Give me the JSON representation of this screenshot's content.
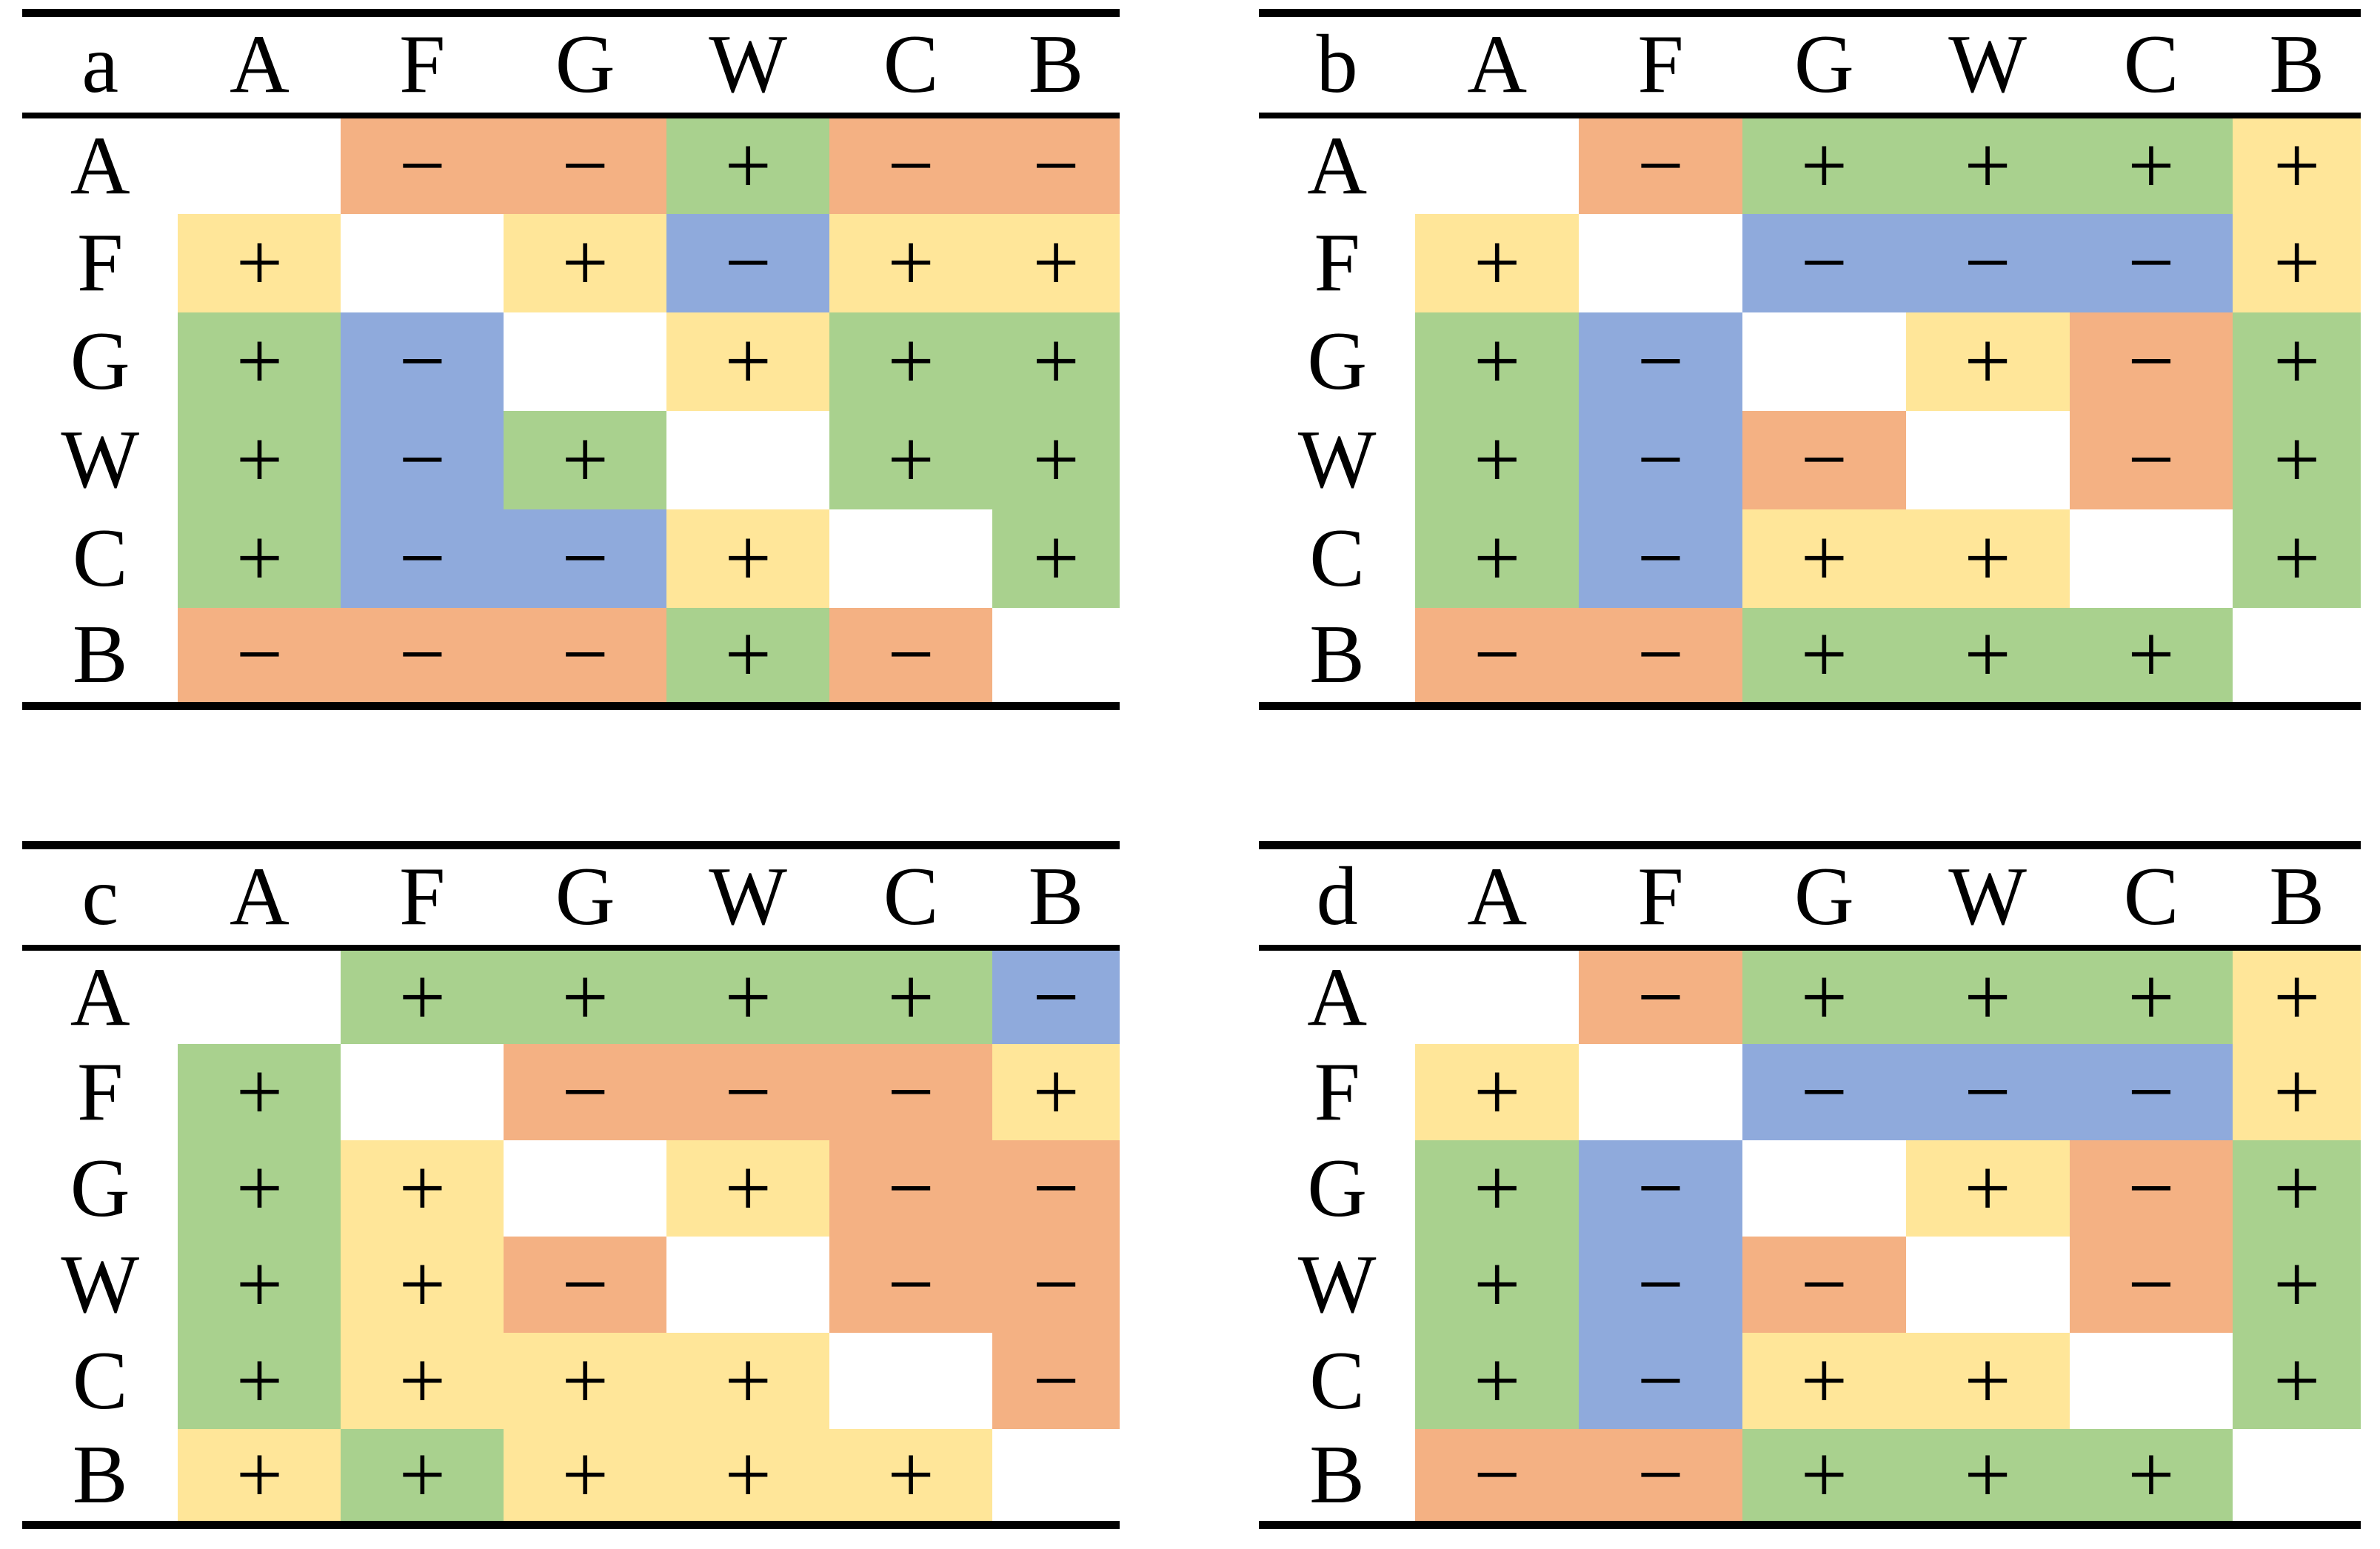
{
  "palette": {
    "green": "#a9d18e",
    "yellow": "#ffe699",
    "orange": "#f4b183",
    "blue": "#8faadc",
    "white": "#ffffff"
  },
  "chart_data": [
    {
      "type": "table",
      "panel_label": "a",
      "x_labels": [
        "A",
        "F",
        "G",
        "W",
        "C",
        "B"
      ],
      "y_labels": [
        "A",
        "F",
        "G",
        "W",
        "C",
        "B"
      ],
      "signs": [
        [
          "",
          "−",
          "−",
          "+",
          "−",
          "−"
        ],
        [
          "+",
          "",
          "+",
          "−",
          "+",
          "+"
        ],
        [
          "+",
          "−",
          "",
          "+",
          "+",
          "+"
        ],
        [
          "+",
          "−",
          "+",
          "",
          "+",
          "+"
        ],
        [
          "+",
          "−",
          "−",
          "+",
          "",
          "+"
        ],
        [
          "−",
          "−",
          "−",
          "+",
          "−",
          ""
        ]
      ],
      "cell_colors": [
        [
          "white",
          "orange",
          "orange",
          "green",
          "orange",
          "orange"
        ],
        [
          "yellow",
          "white",
          "yellow",
          "blue",
          "yellow",
          "yellow"
        ],
        [
          "green",
          "blue",
          "white",
          "yellow",
          "green",
          "green"
        ],
        [
          "green",
          "blue",
          "green",
          "white",
          "green",
          "green"
        ],
        [
          "green",
          "blue",
          "blue",
          "yellow",
          "white",
          "green"
        ],
        [
          "orange",
          "orange",
          "orange",
          "green",
          "orange",
          "white"
        ]
      ]
    },
    {
      "type": "table",
      "panel_label": "b",
      "x_labels": [
        "A",
        "F",
        "G",
        "W",
        "C",
        "B"
      ],
      "y_labels": [
        "A",
        "F",
        "G",
        "W",
        "C",
        "B"
      ],
      "signs": [
        [
          "",
          "−",
          "+",
          "+",
          "+",
          "+"
        ],
        [
          "+",
          "",
          "−",
          "−",
          "−",
          "+"
        ],
        [
          "+",
          "−",
          "",
          "+",
          "−",
          "+"
        ],
        [
          "+",
          "−",
          "−",
          "",
          "−",
          "+"
        ],
        [
          "+",
          "−",
          "+",
          "+",
          "",
          "+"
        ],
        [
          "−",
          "−",
          "+",
          "+",
          "+",
          ""
        ]
      ],
      "cell_colors": [
        [
          "white",
          "orange",
          "green",
          "green",
          "green",
          "yellow"
        ],
        [
          "yellow",
          "white",
          "blue",
          "blue",
          "blue",
          "yellow"
        ],
        [
          "green",
          "blue",
          "white",
          "yellow",
          "orange",
          "green"
        ],
        [
          "green",
          "blue",
          "orange",
          "white",
          "orange",
          "green"
        ],
        [
          "green",
          "blue",
          "yellow",
          "yellow",
          "white",
          "green"
        ],
        [
          "orange",
          "orange",
          "green",
          "green",
          "green",
          "white"
        ]
      ]
    },
    {
      "type": "table",
      "panel_label": "c",
      "x_labels": [
        "A",
        "F",
        "G",
        "W",
        "C",
        "B"
      ],
      "y_labels": [
        "A",
        "F",
        "G",
        "W",
        "C",
        "B"
      ],
      "signs": [
        [
          "",
          "+",
          "+",
          "+",
          "+",
          "−"
        ],
        [
          "+",
          "",
          "−",
          "−",
          "−",
          "+"
        ],
        [
          "+",
          "+",
          "",
          "+",
          "−",
          "−"
        ],
        [
          "+",
          "+",
          "−",
          "",
          "−",
          "−"
        ],
        [
          "+",
          "+",
          "+",
          "+",
          "",
          "−"
        ],
        [
          "+",
          "+",
          "+",
          "+",
          "+",
          ""
        ]
      ],
      "cell_colors": [
        [
          "white",
          "green",
          "green",
          "green",
          "green",
          "blue"
        ],
        [
          "green",
          "white",
          "orange",
          "orange",
          "orange",
          "yellow"
        ],
        [
          "green",
          "yellow",
          "white",
          "yellow",
          "orange",
          "orange"
        ],
        [
          "green",
          "yellow",
          "orange",
          "white",
          "orange",
          "orange"
        ],
        [
          "green",
          "yellow",
          "yellow",
          "yellow",
          "white",
          "orange"
        ],
        [
          "yellow",
          "green",
          "yellow",
          "yellow",
          "yellow",
          "white"
        ]
      ]
    },
    {
      "type": "table",
      "panel_label": "d",
      "x_labels": [
        "A",
        "F",
        "G",
        "W",
        "C",
        "B"
      ],
      "y_labels": [
        "A",
        "F",
        "G",
        "W",
        "C",
        "B"
      ],
      "signs": [
        [
          "",
          "−",
          "+",
          "+",
          "+",
          "+"
        ],
        [
          "+",
          "",
          "−",
          "−",
          "−",
          "+"
        ],
        [
          "+",
          "−",
          "",
          "+",
          "−",
          "+"
        ],
        [
          "+",
          "−",
          "−",
          "",
          "−",
          "+"
        ],
        [
          "+",
          "−",
          "+",
          "+",
          "",
          "+"
        ],
        [
          "−",
          "−",
          "+",
          "+",
          "+",
          ""
        ]
      ],
      "cell_colors": [
        [
          "white",
          "orange",
          "green",
          "green",
          "green",
          "yellow"
        ],
        [
          "yellow",
          "white",
          "blue",
          "blue",
          "blue",
          "yellow"
        ],
        [
          "green",
          "blue",
          "white",
          "yellow",
          "orange",
          "green"
        ],
        [
          "green",
          "blue",
          "orange",
          "white",
          "orange",
          "green"
        ],
        [
          "green",
          "blue",
          "yellow",
          "yellow",
          "white",
          "green"
        ],
        [
          "orange",
          "orange",
          "green",
          "green",
          "green",
          "white"
        ]
      ]
    }
  ]
}
